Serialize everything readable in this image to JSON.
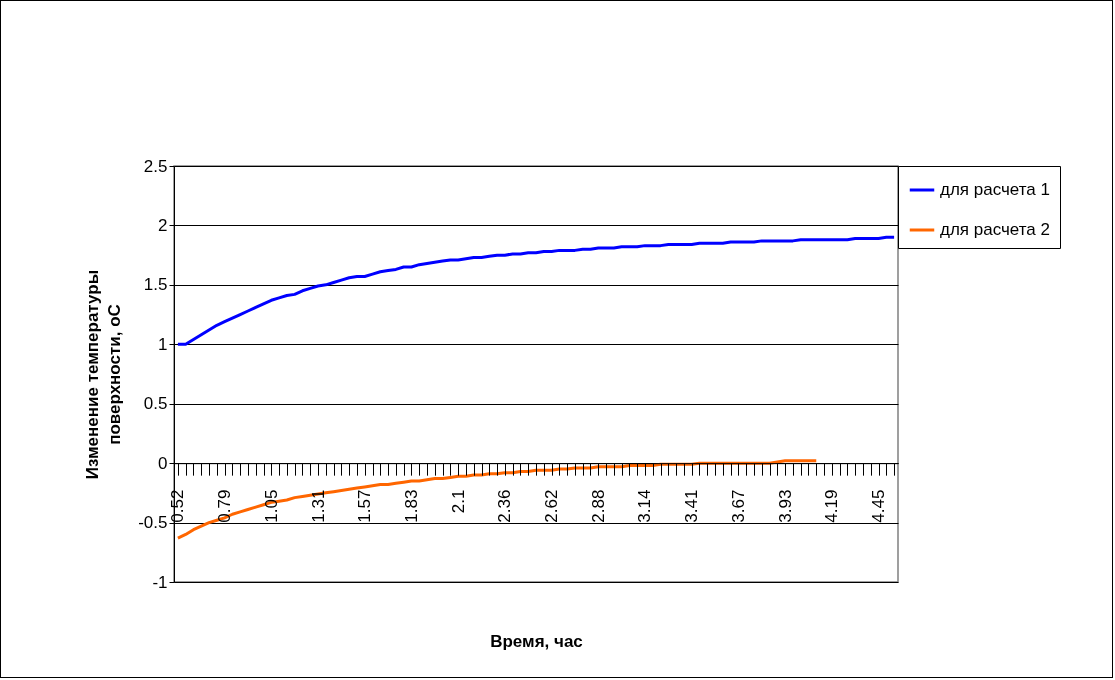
{
  "chart_data": {
    "type": "line",
    "xlabel": "Время, час",
    "ylabel": "Изменение температуры поверхности, оС",
    "categories": [
      "0.52",
      null,
      null,
      null,
      null,
      null,
      "0.79",
      null,
      null,
      null,
      null,
      null,
      "1.05",
      null,
      null,
      null,
      null,
      null,
      "1.31",
      null,
      null,
      null,
      null,
      null,
      "1.57",
      null,
      null,
      null,
      null,
      null,
      "1.83",
      null,
      null,
      null,
      null,
      null,
      "2.1",
      null,
      null,
      null,
      null,
      null,
      "2.36",
      null,
      null,
      null,
      null,
      null,
      "2.62",
      null,
      null,
      null,
      null,
      null,
      "2.88",
      null,
      null,
      null,
      null,
      null,
      "3.14",
      null,
      null,
      null,
      null,
      null,
      "3.41",
      null,
      null,
      null,
      null,
      null,
      "3.67",
      null,
      null,
      null,
      null,
      null,
      "3.93",
      null,
      null,
      null,
      null,
      null,
      "4.19",
      null,
      null,
      null,
      null,
      null,
      "4.45",
      null,
      null
    ],
    "series": [
      {
        "name": "для расчета 1",
        "color": "#0000ff",
        "values": [
          1.0,
          1.0,
          1.04,
          1.08,
          1.12,
          1.16,
          1.19,
          1.22,
          1.25,
          1.28,
          1.31,
          1.34,
          1.37,
          1.39,
          1.41,
          1.42,
          1.45,
          1.47,
          1.49,
          1.5,
          1.52,
          1.54,
          1.56,
          1.57,
          1.57,
          1.59,
          1.61,
          1.62,
          1.63,
          1.65,
          1.65,
          1.67,
          1.68,
          1.69,
          1.7,
          1.71,
          1.71,
          1.72,
          1.73,
          1.73,
          1.74,
          1.75,
          1.75,
          1.76,
          1.76,
          1.77,
          1.77,
          1.78,
          1.78,
          1.79,
          1.79,
          1.79,
          1.8,
          1.8,
          1.81,
          1.81,
          1.81,
          1.82,
          1.82,
          1.82,
          1.83,
          1.83,
          1.83,
          1.84,
          1.84,
          1.84,
          1.84,
          1.85,
          1.85,
          1.85,
          1.85,
          1.86,
          1.86,
          1.86,
          1.86,
          1.87,
          1.87,
          1.87,
          1.87,
          1.87,
          1.88,
          1.88,
          1.88,
          1.88,
          1.88,
          1.88,
          1.88,
          1.89,
          1.89,
          1.89,
          1.89,
          1.9,
          1.9
        ]
      },
      {
        "name": "для расчета 2",
        "color": "#ff6600",
        "values": [
          -0.63,
          -0.6,
          -0.56,
          -0.53,
          -0.5,
          -0.48,
          -0.46,
          -0.43,
          -0.41,
          -0.39,
          -0.37,
          -0.35,
          -0.33,
          -0.32,
          -0.31,
          -0.29,
          -0.28,
          -0.27,
          -0.26,
          -0.25,
          -0.24,
          -0.23,
          -0.22,
          -0.21,
          -0.2,
          -0.19,
          -0.18,
          -0.18,
          -0.17,
          -0.16,
          -0.15,
          -0.15,
          -0.14,
          -0.13,
          -0.13,
          -0.12,
          -0.11,
          -0.11,
          -0.1,
          -0.1,
          -0.09,
          -0.09,
          -0.08,
          -0.08,
          -0.07,
          -0.07,
          -0.06,
          -0.06,
          -0.06,
          -0.05,
          -0.05,
          -0.04,
          -0.04,
          -0.04,
          -0.03,
          -0.03,
          -0.03,
          -0.03,
          -0.02,
          -0.02,
          -0.02,
          -0.02,
          -0.01,
          -0.01,
          -0.01,
          -0.01,
          -0.01,
          0,
          0,
          0,
          0,
          0,
          0,
          0,
          0,
          0,
          0,
          0.01,
          0.02,
          0.02,
          0.02,
          0.02,
          0.02,
          null,
          null,
          null,
          null,
          null,
          null,
          null,
          null,
          null,
          null
        ]
      }
    ],
    "ylim": [
      -1,
      2.5
    ],
    "yticks": [
      -1,
      -0.5,
      0,
      0.5,
      1,
      1.5,
      2,
      2.5
    ],
    "grid": "y",
    "legend": "right",
    "marker": "none",
    "line_style": "solid"
  }
}
